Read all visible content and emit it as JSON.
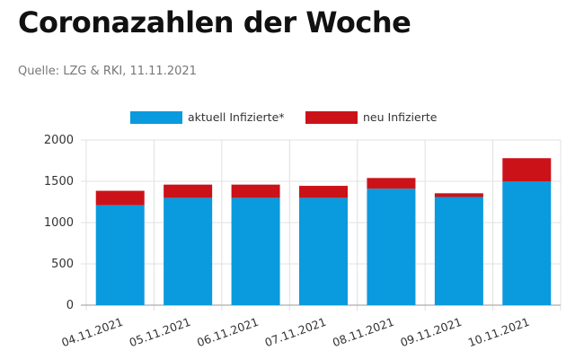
{
  "page": {
    "title": "Coronazahlen der Woche",
    "source": "Quelle: LZG & RKI, 11.11.2021"
  },
  "chart_data": {
    "type": "bar",
    "stacked": true,
    "categories": [
      "04.11.2021",
      "05.11.2021",
      "06.11.2021",
      "07.11.2021",
      "08.11.2021",
      "09.11.2021",
      "10.11.2021"
    ],
    "series": [
      {
        "name": "aktuell Infizierte*",
        "color": "#0a9ade",
        "values": [
          1210,
          1300,
          1300,
          1300,
          1410,
          1310,
          1500
        ]
      },
      {
        "name": "neu Infizierte",
        "color": "#cc1219",
        "values": [
          175,
          160,
          160,
          145,
          130,
          45,
          280
        ]
      }
    ],
    "ylim": [
      0,
      2000
    ],
    "yticks": [
      0,
      500,
      1000,
      1500,
      2000
    ],
    "tick_labels": [
      "0",
      "500",
      "1000",
      "1500",
      "2000"
    ],
    "grid": true,
    "legend_position": "top-center"
  }
}
